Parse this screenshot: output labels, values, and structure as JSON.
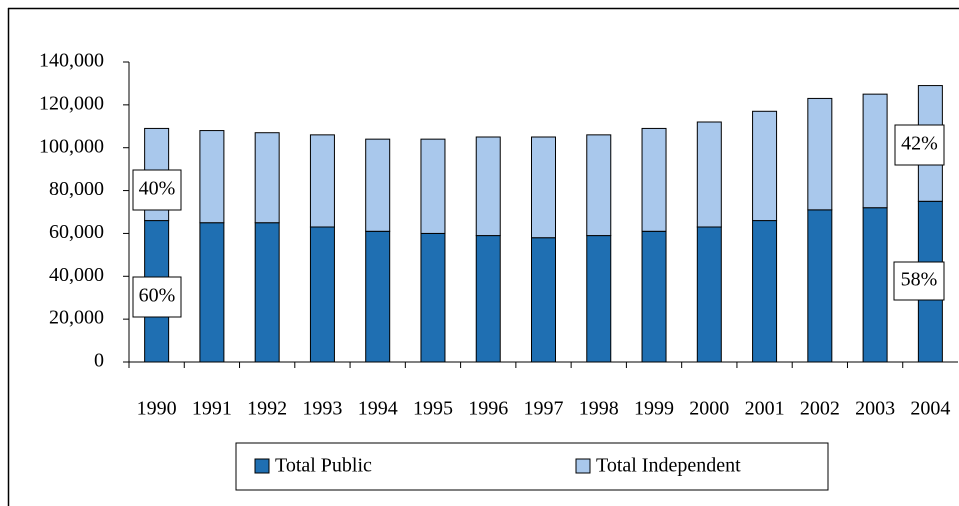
{
  "chart_data": {
    "type": "stacked_bar",
    "categories": [
      "1990",
      "1991",
      "1992",
      "1993",
      "1994",
      "1995",
      "1996",
      "1997",
      "1998",
      "1999",
      "2000",
      "2001",
      "2002",
      "2003",
      "2004"
    ],
    "series": [
      {
        "name": "Total Public",
        "color": "#1f6fb2",
        "values": [
          66000,
          65000,
          65000,
          63000,
          61000,
          60000,
          59000,
          58000,
          59000,
          61000,
          63000,
          66000,
          71000,
          72000,
          75000
        ]
      },
      {
        "name": "Total Independent",
        "color": "#a9c8ec",
        "values": [
          43000,
          43000,
          42000,
          43000,
          43000,
          44000,
          46000,
          47000,
          47000,
          48000,
          49000,
          51000,
          52000,
          53000,
          54000
        ]
      }
    ],
    "ylim": [
      0,
      140000
    ],
    "yticks": [
      0,
      {
        "value": 20000,
        "label": "20,000"
      },
      {
        "value": 40000,
        "label": "40,000"
      },
      {
        "value": 60000,
        "label": "60,000"
      },
      {
        "value": 80000,
        "label": "80,000"
      },
      {
        "value": 100000,
        "label": "100,000"
      },
      {
        "value": 120000,
        "label": "120,000"
      },
      {
        "value": 140000,
        "label": "140,000"
      }
    ],
    "annotations": [
      "40%",
      "60%",
      "42%",
      "58%"
    ],
    "legend": "bottom"
  }
}
